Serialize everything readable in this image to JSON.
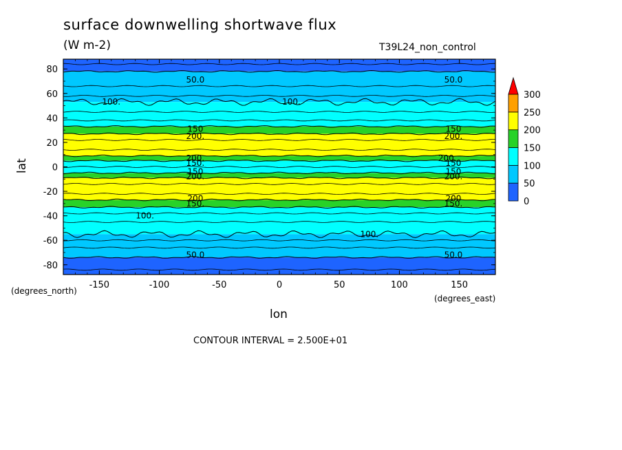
{
  "chart_data": {
    "type": "heatmap",
    "title": "surface downwelling shortwave flux",
    "units": "(W m-2)",
    "run_label": "T39L24_non_control",
    "xlabel": "lon",
    "ylabel": "lat",
    "x_unit_label": "(degrees_east)",
    "y_unit_label": "(degrees_north)",
    "xlim": [
      -180,
      180
    ],
    "ylim": [
      -88,
      88
    ],
    "x_ticks": [
      -150,
      -100,
      -50,
      0,
      50,
      100,
      150
    ],
    "x_tick_labels": [
      "-150",
      "-100",
      "-50",
      "0",
      "50",
      "100",
      "150"
    ],
    "y_ticks": [
      80,
      60,
      40,
      20,
      0,
      -20,
      -40,
      -60,
      -80
    ],
    "y_tick_labels": [
      "80",
      "60",
      "40",
      "20",
      "0",
      "-20",
      "-40",
      "-60",
      "-80"
    ],
    "contour_interval_text": "CONTOUR INTERVAL = 2.500E+01",
    "colorbar": {
      "levels": [
        0,
        50,
        100,
        150,
        200,
        250,
        300
      ],
      "labels": [
        "0",
        "50",
        "100",
        "150",
        "200",
        "250",
        "300"
      ],
      "colors": [
        "#1e64ff",
        "#00c8ff",
        "#00ffff",
        "#28d228",
        "#ffff00",
        "#ffa000"
      ],
      "extend_color": "#ff0000"
    },
    "latitude_bands": [
      {
        "lat_from": 88,
        "lat_to": 78,
        "range": "0-50",
        "color": "#1e64ff"
      },
      {
        "lat_from": 78,
        "lat_to": 53,
        "range": "50-100",
        "color": "#00c8ff"
      },
      {
        "lat_from": 53,
        "lat_to": 33,
        "range": "100-150",
        "color": "#00ffff"
      },
      {
        "lat_from": 33,
        "lat_to": 27,
        "range": "150-200",
        "color": "#28d228"
      },
      {
        "lat_from": 27,
        "lat_to": 9,
        "range": "200-250",
        "color": "#ffff00"
      },
      {
        "lat_from": 9,
        "lat_to": 5,
        "range": "150-200",
        "color": "#28d228"
      },
      {
        "lat_from": 5,
        "lat_to": -5,
        "range": "100-150",
        "color": "#00ffff"
      },
      {
        "lat_from": -5,
        "lat_to": -9,
        "range": "150-200",
        "color": "#28d228"
      },
      {
        "lat_from": -9,
        "lat_to": -27,
        "range": "200-250",
        "color": "#ffff00"
      },
      {
        "lat_from": -27,
        "lat_to": -33,
        "range": "150-200",
        "color": "#28d228"
      },
      {
        "lat_from": -33,
        "lat_to": -55,
        "range": "100-150",
        "color": "#00ffff"
      },
      {
        "lat_from": -55,
        "lat_to": -74,
        "range": "50-100",
        "color": "#00c8ff"
      },
      {
        "lat_from": -74,
        "lat_to": -88,
        "range": "0-50",
        "color": "#1e64ff"
      }
    ],
    "contour_labels": [
      {
        "text": "50.0",
        "lon": -70,
        "lat": 71
      },
      {
        "text": "50.0",
        "lon": 145,
        "lat": 71
      },
      {
        "text": "100.",
        "lon": -140,
        "lat": 53
      },
      {
        "text": "100.",
        "lon": 10,
        "lat": 53
      },
      {
        "text": "150",
        "lon": -70,
        "lat": 31
      },
      {
        "text": "200.",
        "lon": -70,
        "lat": 25
      },
      {
        "text": "150",
        "lon": 145,
        "lat": 31
      },
      {
        "text": "200.",
        "lon": 145,
        "lat": 25
      },
      {
        "text": "200.",
        "lon": -70,
        "lat": 7
      },
      {
        "text": "150.",
        "lon": -70,
        "lat": 3
      },
      {
        "text": "200.",
        "lon": 140,
        "lat": 7
      },
      {
        "text": "150",
        "lon": 145,
        "lat": 3
      },
      {
        "text": "150",
        "lon": -70,
        "lat": -4
      },
      {
        "text": "200.",
        "lon": -70,
        "lat": -8
      },
      {
        "text": "150",
        "lon": 145,
        "lat": -4
      },
      {
        "text": "200.",
        "lon": 145,
        "lat": -8
      },
      {
        "text": "200",
        "lon": -70,
        "lat": -26
      },
      {
        "text": "150.",
        "lon": -70,
        "lat": -30
      },
      {
        "text": "200",
        "lon": 145,
        "lat": -26
      },
      {
        "text": "150.",
        "lon": 145,
        "lat": -30
      },
      {
        "text": "100.",
        "lon": -112,
        "lat": -40
      },
      {
        "text": "100.",
        "lon": 75,
        "lat": -55
      },
      {
        "text": "50.0",
        "lon": -70,
        "lat": -72
      },
      {
        "text": "50.0",
        "lon": 145,
        "lat": -72
      }
    ]
  }
}
